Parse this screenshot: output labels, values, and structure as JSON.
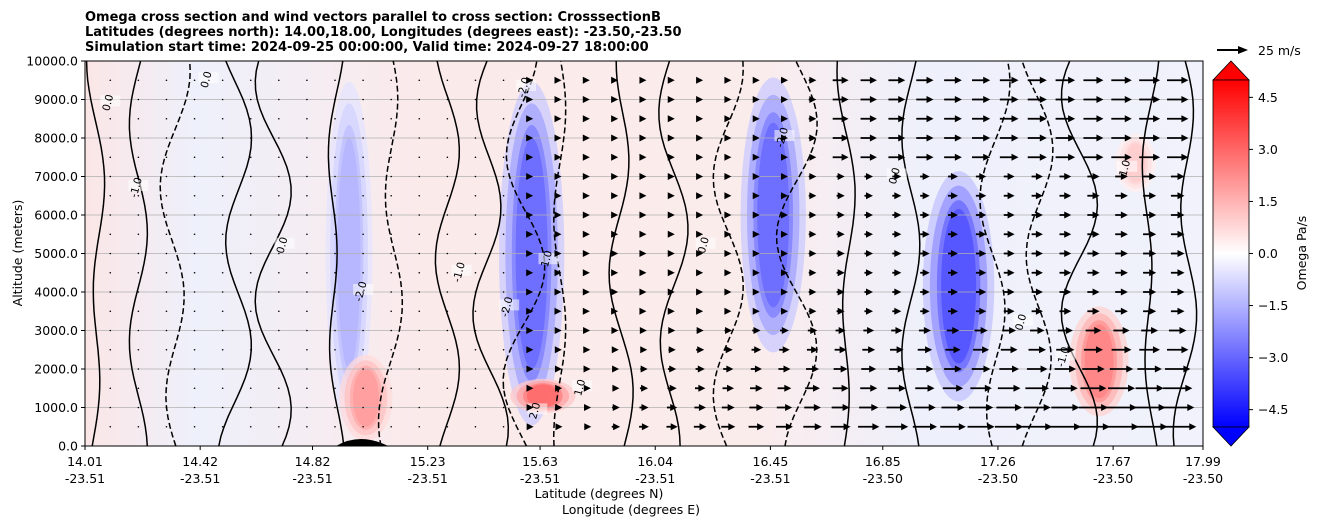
{
  "title_lines": [
    "Omega cross section and wind vectors parallel to cross section: CrosssectionB",
    "Latitudes (degrees north): 14.00,18.00, Longitudes (degrees east): -23.50,-23.50",
    "Simulation start time: 2024-09-25 00:00:00, Valid time: 2024-09-27 18:00:00"
  ],
  "chart_data": {
    "type": "heatmap",
    "title": "Omega cross section and wind vectors parallel to cross section: CrosssectionB",
    "xlabel_lines": [
      "Latitude (degrees N)",
      "Longitude (degrees E)"
    ],
    "ylabel": "Altitude (meters)",
    "ylim": [
      0,
      10000
    ],
    "yticks": [
      "0.0",
      "1000.0",
      "2000.0",
      "3000.0",
      "4000.0",
      "5000.0",
      "6000.0",
      "7000.0",
      "8000.0",
      "9000.0",
      "10000.0"
    ],
    "xticks": [
      {
        "lat": "14.01",
        "lon": "-23.51"
      },
      {
        "lat": "14.42",
        "lon": "-23.51"
      },
      {
        "lat": "14.82",
        "lon": "-23.51"
      },
      {
        "lat": "15.23",
        "lon": "-23.51"
      },
      {
        "lat": "15.63",
        "lon": "-23.51"
      },
      {
        "lat": "16.04",
        "lon": "-23.51"
      },
      {
        "lat": "16.45",
        "lon": "-23.51"
      },
      {
        "lat": "16.85",
        "lon": "-23.50"
      },
      {
        "lat": "17.26",
        "lon": "-23.50"
      },
      {
        "lat": "17.67",
        "lon": "-23.50"
      },
      {
        "lat": "17.99",
        "lon": "-23.50"
      }
    ],
    "grid": "horizontal",
    "colorbar": {
      "label": "Omega Pa/s",
      "range": [
        -5,
        5
      ],
      "ticks": [
        "4.5",
        "3.0",
        "1.5",
        "0.0",
        "−1.5",
        "−3.0",
        "−4.5"
      ],
      "colors": {
        "negative": "#0000ff",
        "zero": "#ffffff",
        "positive": "#ff0000"
      },
      "extend": "both"
    },
    "quiver_key": "25 m/s",
    "contour_levels": [
      "-2.0",
      "-1.0",
      "0.0",
      "1.0",
      "2.0"
    ],
    "contour_labels": [
      "0.0",
      "0.0",
      "-1.0",
      "0.0",
      "-2.0",
      "-1.0",
      "-2.0",
      "-2.0",
      "-1.0",
      "1.0",
      "0.0",
      "-2.0",
      "2.0",
      "0.0",
      "-1.0",
      "1.0",
      "0.0"
    ],
    "features": {
      "descending_omega": [
        {
          "lat": 14.95,
          "alt_min": 0,
          "alt_max": 10000,
          "peak": -1.5
        },
        {
          "lat": 15.6,
          "alt_min": 0,
          "alt_max": 10000,
          "peak": -3.0
        },
        {
          "lat": 16.46,
          "alt_min": 2000,
          "alt_max": 10000,
          "peak": -3.0
        },
        {
          "lat": 17.12,
          "alt_min": 800,
          "alt_max": 7500,
          "peak": -3.5
        }
      ],
      "ascending_omega": [
        {
          "lat": 15.01,
          "alt_min": 0,
          "alt_max": 2500,
          "peak": 2.0
        },
        {
          "lat": 15.64,
          "alt_min": 800,
          "alt_max": 1800,
          "peak": 3.0
        },
        {
          "lat": 17.62,
          "alt_min": 600,
          "alt_max": 3800,
          "peak": 2.5
        },
        {
          "lat": 17.75,
          "alt_min": 6500,
          "alt_max": 8200,
          "peak": 1.0
        }
      ],
      "terrain_peak_lat": 15.0
    }
  }
}
